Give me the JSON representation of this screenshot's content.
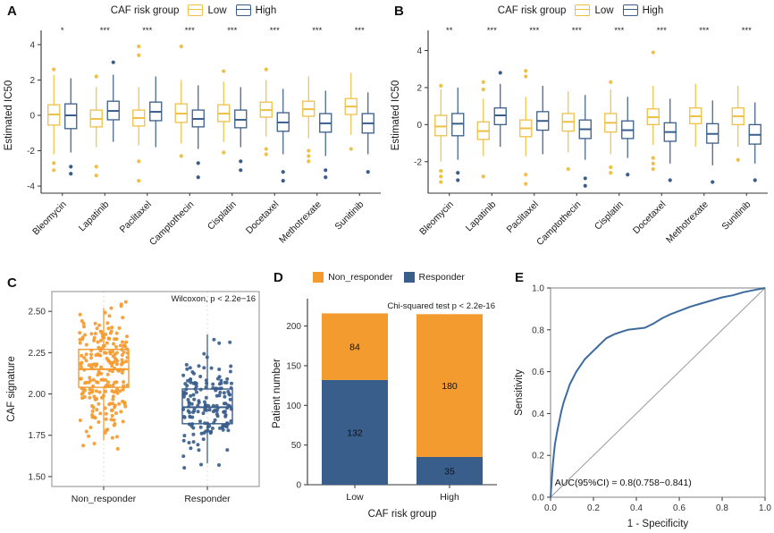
{
  "colors": {
    "low": "#EFC046",
    "high": "#3A5E8C",
    "orange": "#F49B30",
    "blue": "#3A5E8C",
    "roc": "#3E6B9F",
    "axis": "#333333",
    "frame": "#8C8C8C",
    "grid": "#DCDCDC",
    "text": "#1A1A1A",
    "diagonal": "#999999"
  },
  "chart_data": [
    {
      "letter": "A",
      "type": "grouped_boxplot",
      "legend_title": "CAF risk group",
      "legend_items": [
        "Low",
        "High"
      ],
      "ylabel": "Estimated IC50",
      "ylim": [
        -4.4,
        4.4
      ],
      "yticks": [
        -4,
        -2,
        0,
        2,
        4
      ],
      "boxes": [
        {
          "drug": "Bleomycin",
          "sig": "*",
          "low": {
            "q1": -0.55,
            "med": 0.05,
            "q3": 0.6,
            "whislo": -2.2,
            "whishi": 2.3,
            "outliers": [
              2.6,
              -2.7,
              -3.1
            ]
          },
          "high": {
            "q1": -0.75,
            "med": 0,
            "q3": 0.65,
            "whislo": -2.1,
            "whishi": 2.1,
            "outliers": [
              -2.9,
              -3.3
            ]
          }
        },
        {
          "drug": "Lapatinib",
          "sig": "***",
          "low": {
            "q1": -0.65,
            "med": -0.2,
            "q3": 0.3,
            "whislo": -1.8,
            "whishi": 1.6,
            "outliers": [
              2.2,
              -2.9,
              -3.4
            ]
          },
          "high": {
            "q1": -0.25,
            "med": 0.25,
            "q3": 0.8,
            "whislo": -1.5,
            "whishi": 2.3,
            "outliers": [
              3.0
            ]
          }
        },
        {
          "drug": "Paclitaxel",
          "sig": "***",
          "low": {
            "q1": -0.6,
            "med": -0.15,
            "q3": 0.3,
            "whislo": -1.7,
            "whishi": 1.6,
            "outliers": [
              3.9,
              3.4,
              -2.6,
              -3.7
            ]
          },
          "high": {
            "q1": -0.3,
            "med": 0.2,
            "q3": 0.75,
            "whislo": -1.8,
            "whishi": 2.2,
            "outliers": []
          }
        },
        {
          "drug": "Camptothecin",
          "sig": "***",
          "low": {
            "q1": -0.4,
            "med": 0.1,
            "q3": 0.65,
            "whislo": -1.6,
            "whishi": 2.0,
            "outliers": [
              3.9,
              -2.3
            ]
          },
          "high": {
            "q1": -0.65,
            "med": -0.2,
            "q3": 0.3,
            "whislo": -1.9,
            "whishi": 1.7,
            "outliers": [
              -2.7,
              -3.5
            ]
          }
        },
        {
          "drug": "Cisplatin",
          "sig": "***",
          "low": {
            "q1": -0.35,
            "med": 0.1,
            "q3": 0.6,
            "whislo": -1.5,
            "whishi": 1.9,
            "outliers": [
              2.5,
              -2.1
            ]
          },
          "high": {
            "q1": -0.7,
            "med": -0.25,
            "q3": 0.3,
            "whislo": -1.8,
            "whishi": 1.6,
            "outliers": [
              -2.6,
              -3.1
            ]
          }
        },
        {
          "drug": "Docetaxel",
          "sig": "***",
          "low": {
            "q1": -0.1,
            "med": 0.3,
            "q3": 0.75,
            "whislo": -1.2,
            "whishi": 2.0,
            "outliers": [
              2.6,
              -1.9,
              -2.2
            ]
          },
          "high": {
            "q1": -0.9,
            "med": -0.4,
            "q3": 0.15,
            "whislo": -2.2,
            "whishi": 1.5,
            "outliers": [
              -3.2,
              -3.7
            ]
          }
        },
        {
          "drug": "Methotrexate",
          "sig": "***",
          "low": {
            "q1": -0.05,
            "med": 0.35,
            "q3": 0.8,
            "whislo": -1.3,
            "whishi": 2.2,
            "outliers": [
              -2.0,
              -2.3,
              -2.6
            ]
          },
          "high": {
            "q1": -0.95,
            "med": -0.45,
            "q3": 0.1,
            "whislo": -2.3,
            "whishi": 1.4,
            "outliers": [
              -3.1,
              -3.5
            ]
          }
        },
        {
          "drug": "Sunitinib",
          "sig": "***",
          "low": {
            "q1": 0.05,
            "med": 0.5,
            "q3": 0.95,
            "whislo": -1.1,
            "whishi": 2.4,
            "outliers": [
              -1.9
            ]
          },
          "high": {
            "q1": -1.0,
            "med": -0.45,
            "q3": 0.1,
            "whislo": -2.2,
            "whishi": 1.3,
            "outliers": [
              -3.2
            ]
          }
        }
      ]
    },
    {
      "letter": "B",
      "type": "grouped_boxplot",
      "legend_title": "CAF risk group",
      "legend_items": [
        "Low",
        "High"
      ],
      "ylabel": "Estimated IC50",
      "ylim": [
        -3.7,
        4.7
      ],
      "yticks": [
        -2,
        0,
        2,
        4
      ],
      "boxes": [
        {
          "drug": "Bleomycin",
          "sig": "**",
          "low": {
            "q1": -0.6,
            "med": -0.1,
            "q3": 0.5,
            "whislo": -2.0,
            "whishi": 1.9,
            "outliers": [
              2.1,
              -2.5,
              -2.8,
              -3.1
            ]
          },
          "high": {
            "q1": -0.6,
            "med": 0.05,
            "q3": 0.6,
            "whislo": -1.9,
            "whishi": 2.0,
            "outliers": [
              -2.6,
              -3.0
            ]
          }
        },
        {
          "drug": "Lapatinib",
          "sig": "***",
          "low": {
            "q1": -0.8,
            "med": -0.35,
            "q3": 0.15,
            "whislo": -1.7,
            "whishi": 1.4,
            "outliers": [
              1.9,
              2.3,
              -2.8
            ]
          },
          "high": {
            "q1": 0.0,
            "med": 0.5,
            "q3": 0.9,
            "whislo": -1.2,
            "whishi": 2.2,
            "outliers": [
              2.8
            ]
          }
        },
        {
          "drug": "Paclitaxel",
          "sig": "***",
          "low": {
            "q1": -0.65,
            "med": -0.2,
            "q3": 0.25,
            "whislo": -1.7,
            "whishi": 1.5,
            "outliers": [
              2.6,
              2.9,
              -2.7,
              -3.2
            ]
          },
          "high": {
            "q1": -0.3,
            "med": 0.2,
            "q3": 0.7,
            "whislo": -1.6,
            "whishi": 2.1,
            "outliers": []
          }
        },
        {
          "drug": "Camptothecin",
          "sig": "***",
          "low": {
            "q1": -0.35,
            "med": 0.15,
            "q3": 0.6,
            "whislo": -1.5,
            "whishi": 1.8,
            "outliers": [
              -2.4
            ]
          },
          "high": {
            "q1": -0.75,
            "med": -0.25,
            "q3": 0.25,
            "whislo": -1.9,
            "whishi": 1.6,
            "outliers": [
              -2.9,
              -3.3
            ]
          }
        },
        {
          "drug": "Cisplatin",
          "sig": "***",
          "low": {
            "q1": -0.4,
            "med": 0.1,
            "q3": 0.6,
            "whislo": -1.6,
            "whishi": 1.9,
            "outliers": [
              2.3,
              -2.3,
              -2.6
            ]
          },
          "high": {
            "q1": -0.75,
            "med": -0.3,
            "q3": 0.2,
            "whislo": -1.8,
            "whishi": 1.5,
            "outliers": [
              -2.7
            ]
          }
        },
        {
          "drug": "Docetaxel",
          "sig": "***",
          "low": {
            "q1": 0.0,
            "med": 0.4,
            "q3": 0.85,
            "whislo": -1.1,
            "whishi": 2.1,
            "outliers": [
              3.9,
              -1.8,
              -2.1,
              -2.4
            ]
          },
          "high": {
            "q1": -0.9,
            "med": -0.4,
            "q3": 0.1,
            "whislo": -2.1,
            "whishi": 1.4,
            "outliers": [
              -3.0
            ]
          }
        },
        {
          "drug": "Methotrexate",
          "sig": "***",
          "low": {
            "q1": 0.05,
            "med": 0.45,
            "q3": 0.9,
            "whislo": -1.2,
            "whishi": 2.2,
            "outliers": []
          },
          "high": {
            "q1": -1.0,
            "med": -0.5,
            "q3": 0.05,
            "whislo": -2.2,
            "whishi": 1.3,
            "outliers": [
              -3.1
            ]
          }
        },
        {
          "drug": "Sunitinib",
          "sig": "***",
          "low": {
            "q1": 0.0,
            "med": 0.45,
            "q3": 0.9,
            "whislo": -1.2,
            "whishi": 2.1,
            "outliers": [
              -1.9
            ]
          },
          "high": {
            "q1": -1.05,
            "med": -0.55,
            "q3": 0.0,
            "whislo": -2.1,
            "whishi": 1.2,
            "outliers": [
              -3.0
            ]
          }
        }
      ]
    },
    {
      "letter": "C",
      "type": "jitter_boxplot",
      "annotation": "Wilcoxon, p < 2.2e−16",
      "ylabel": "CAF signature",
      "ylim": [
        1.44,
        2.62
      ],
      "yticks": [
        1.5,
        1.75,
        2.0,
        2.25,
        2.5
      ],
      "ytick_labels": [
        "1.50",
        "1.75",
        "2.00",
        "2.25",
        "2.50"
      ],
      "groups": [
        {
          "label": "Non_responder",
          "n": 230,
          "mean": 2.13,
          "sd": 0.2,
          "min": 1.52,
          "max": 2.56,
          "box": {
            "q1": 2.04,
            "med": 2.15,
            "q3": 2.27,
            "whislo": 1.72,
            "whishi": 2.52
          }
        },
        {
          "label": "Responder",
          "n": 165,
          "mean": 1.93,
          "sd": 0.17,
          "min": 1.48,
          "max": 2.43,
          "box": {
            "q1": 1.82,
            "med": 1.92,
            "q3": 2.03,
            "whislo": 1.58,
            "whishi": 2.36
          }
        }
      ]
    },
    {
      "letter": "D",
      "type": "stacked_bar",
      "annotation": "Chi-squared test p < 2.2e-16",
      "ylabel": "Patient number",
      "xlabel": "CAF risk group",
      "categories": [
        "Low",
        "High"
      ],
      "series": [
        {
          "name": "Non_responder",
          "values": [
            84,
            180
          ]
        },
        {
          "name": "Responder",
          "values": [
            132,
            35
          ]
        }
      ],
      "ylim": [
        0,
        230
      ],
      "yticks": [
        0,
        50,
        100,
        150,
        200
      ]
    },
    {
      "letter": "E",
      "type": "roc_line",
      "annotation": "AUC(95%CI) = 0.8(0.758−0.841)",
      "ylabel": "Sensitivity",
      "xlabel": "1 - Specificity",
      "ticks": [
        0,
        0.2,
        0.4,
        0.6,
        0.8,
        1
      ],
      "tick_labels": [
        "0.0",
        "0.2",
        "0.4",
        "0.6",
        "0.8",
        "1.0"
      ],
      "diagonal": true,
      "roc_points": [
        [
          0,
          0
        ],
        [
          0.004,
          0.06
        ],
        [
          0.008,
          0.12
        ],
        [
          0.012,
          0.17
        ],
        [
          0.016,
          0.21
        ],
        [
          0.02,
          0.25
        ],
        [
          0.03,
          0.31
        ],
        [
          0.04,
          0.36
        ],
        [
          0.05,
          0.41
        ],
        [
          0.06,
          0.45
        ],
        [
          0.07,
          0.48
        ],
        [
          0.08,
          0.51
        ],
        [
          0.09,
          0.54
        ],
        [
          0.1,
          0.56
        ],
        [
          0.11,
          0.58
        ],
        [
          0.12,
          0.6
        ],
        [
          0.14,
          0.63
        ],
        [
          0.16,
          0.66
        ],
        [
          0.18,
          0.68
        ],
        [
          0.2,
          0.7
        ],
        [
          0.22,
          0.72
        ],
        [
          0.24,
          0.74
        ],
        [
          0.26,
          0.76
        ],
        [
          0.28,
          0.77
        ],
        [
          0.3,
          0.78
        ],
        [
          0.33,
          0.79
        ],
        [
          0.36,
          0.8
        ],
        [
          0.4,
          0.805
        ],
        [
          0.44,
          0.81
        ],
        [
          0.46,
          0.82
        ],
        [
          0.48,
          0.83
        ],
        [
          0.52,
          0.855
        ],
        [
          0.56,
          0.875
        ],
        [
          0.6,
          0.89
        ],
        [
          0.65,
          0.91
        ],
        [
          0.7,
          0.925
        ],
        [
          0.75,
          0.94
        ],
        [
          0.8,
          0.955
        ],
        [
          0.85,
          0.965
        ],
        [
          0.9,
          0.98
        ],
        [
          0.95,
          0.99
        ],
        [
          1,
          1
        ]
      ]
    }
  ]
}
